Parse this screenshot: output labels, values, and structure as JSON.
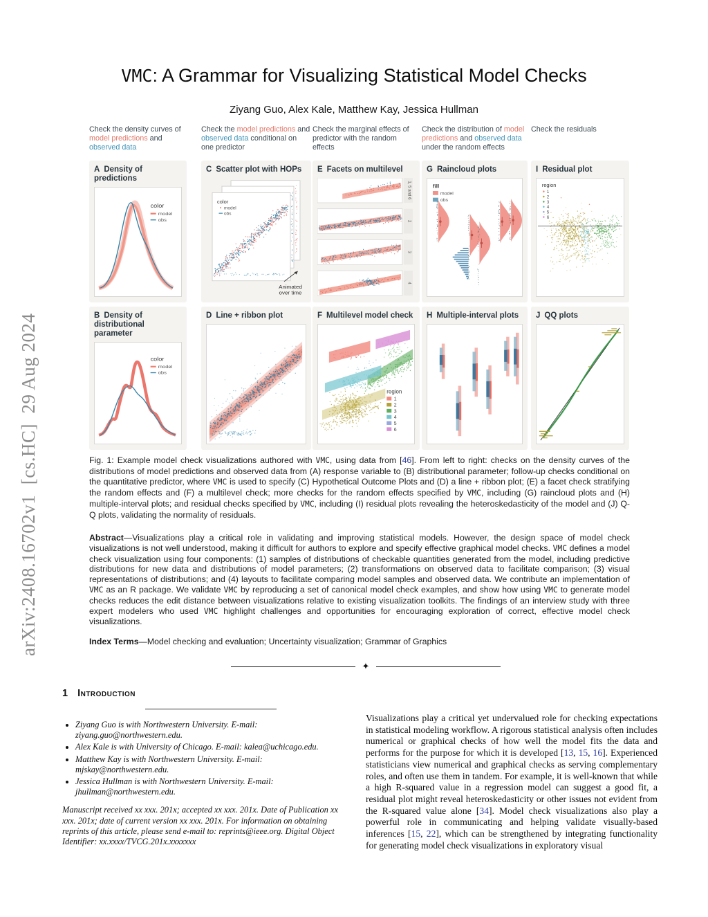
{
  "sidebar": {
    "arxiv": "arXiv:2408.16702v1  [cs.HC]  29 Aug 2024"
  },
  "header": {
    "title_code": "VMC",
    "title_rest": ": A Grammar for Visualizing Statistical Model Checks",
    "authors": "Ziyang Guo, Alex Kale, Matthew Kay, Jessica Hullman"
  },
  "figure": {
    "col_headers": [
      [
        {
          "t": "Check the density curves of "
        },
        {
          "t": "model predictions",
          "s": "model"
        },
        {
          "t": " and "
        },
        {
          "t": "observed data",
          "s": "obs"
        }
      ],
      [
        {
          "t": "Check the "
        },
        {
          "t": "model predictions",
          "s": "model"
        },
        {
          "t": " and "
        },
        {
          "t": "observed data",
          "s": "obs"
        },
        {
          "t": " conditional on one predictor"
        }
      ],
      [
        {
          "t": "Check the marginal effects of predictor with the random effects"
        }
      ],
      [
        {
          "t": "Check the distribution of "
        },
        {
          "t": "model predictions",
          "s": "model"
        },
        {
          "t": " and "
        },
        {
          "t": "observed data",
          "s": "obs"
        },
        {
          "t": " under the random effects"
        }
      ],
      [
        {
          "t": "Check the residuals"
        }
      ]
    ],
    "panels": {
      "A": {
        "letter": "A",
        "title": "Density of predictions"
      },
      "B": {
        "letter": "B",
        "title": "Density of distributional parameter"
      },
      "C": {
        "letter": "C",
        "title": "Scatter plot with HOPs"
      },
      "D": {
        "letter": "D",
        "title": "Line + ribbon plot"
      },
      "E": {
        "letter": "E",
        "title": "Facets on multilevel"
      },
      "F": {
        "letter": "F",
        "title": "Multilevel model check"
      },
      "G": {
        "letter": "G",
        "title": "Raincloud plots"
      },
      "H": {
        "letter": "H",
        "title": "Multiple-interval plots"
      },
      "I": {
        "letter": "I",
        "title": "Residual plot"
      },
      "J": {
        "letter": "J",
        "title": "QQ plots"
      }
    },
    "legend_color": {
      "title": "color",
      "model": "model",
      "obs": "obs"
    },
    "legend_fill": {
      "title": "fill",
      "model": "model",
      "obs": "obs"
    },
    "legend_region": {
      "title": "region",
      "items": [
        "1",
        "2",
        "3",
        "4",
        "5",
        "6"
      ]
    },
    "facet_labels": [
      "1, 5 and 6",
      "2",
      "3",
      "4"
    ],
    "hops_note": {
      "line1": "Animated",
      "line2": "over time"
    },
    "colors": {
      "model": "#ED8372",
      "obs": "#3E8FB0",
      "region": [
        "#F08A80",
        "#B3A139",
        "#5FAE5F",
        "#74C4CF",
        "#97A8DE",
        "#D98FD6"
      ]
    }
  },
  "caption": {
    "segments": [
      {
        "t": "Fig. 1:  Example model check visualizations authored with "
      },
      {
        "t": "VMC",
        "s": "code"
      },
      {
        "t": ", using data from ["
      },
      {
        "t": "46",
        "s": "cite"
      },
      {
        "t": "]. From left to right: checks on the density curves of the distributions of model predictions and observed data from (A) response variable to (B) distributional parameter; follow-up checks conditional on the quantitative predictor, where "
      },
      {
        "t": "VMC",
        "s": "code"
      },
      {
        "t": " is used to specify (C) Hypothetical Outcome Plots and (D) a line + ribbon plot; (E) a facet check stratifying the random effects and (F) a multilevel check; more checks for the random effects specified by "
      },
      {
        "t": "VMC",
        "s": "code"
      },
      {
        "t": ", including (G) raincloud plots and (H) multiple-interval plots; and residual checks specified by "
      },
      {
        "t": "VMC",
        "s": "code"
      },
      {
        "t": ", including (I) residual plots revealing the heteroskedasticity of the model and (J) Q-Q plots, validating the normality of residuals."
      }
    ]
  },
  "abstract": {
    "segments": [
      {
        "t": "Abstract",
        "s": "b"
      },
      {
        "t": "—Visualizations play a critical role in validating and improving statistical models. However, the design space of model check visualizations is not well understood, making it difficult for authors to explore and specify effective graphical model checks. "
      },
      {
        "t": "VMC",
        "s": "code"
      },
      {
        "t": " defines a model check visualization using four components: (1) samples of distributions of checkable quantities generated from the model, including predictive distributions for new data and distributions of model parameters; (2) transformations on observed data to facilitate comparison; (3) visual representations of distributions; and (4) layouts to facilitate comparing model samples and observed data. We contribute an implementation of "
      },
      {
        "t": "VMC",
        "s": "code"
      },
      {
        "t": " as an R package. We validate "
      },
      {
        "t": "VMC",
        "s": "code"
      },
      {
        "t": " by reproducing a set of canonical model check examples, and show how using "
      },
      {
        "t": "VMC",
        "s": "code"
      },
      {
        "t": " to generate model checks reduces the edit distance between visualizations relative to existing visualization toolkits. The findings of an interview study with three expert modelers who used "
      },
      {
        "t": "VMC",
        "s": "code"
      },
      {
        "t": " highlight challenges and opportunities for encouraging exploration of correct, effective model check visualizations."
      }
    ]
  },
  "index_terms": {
    "segments": [
      {
        "t": "Index Terms",
        "s": "b"
      },
      {
        "t": "—Model checking and evaluation; Uncertainty visualization; Grammar of Graphics"
      }
    ]
  },
  "intro": {
    "number": "1",
    "heading": "Introduction"
  },
  "footnotes": {
    "bullets": [
      "Ziyang Guo is with Northwestern University. E-mail: ziyang.guo@northwestern.edu.",
      "Alex Kale is with University of Chicago. E-mail: kalea@uchicago.edu.",
      "Matthew Kay is with Northwestern University. E-mail: mjskay@northwestern.edu.",
      "Jessica Hullman is with Northwestern University. E-mail: jhullman@northwestern.edu."
    ],
    "manuscript": "Manuscript received xx xxx. 201x; accepted xx xxx. 201x. Date of Publication xx xxx. 201x; date of current version xx xxx. 201x. For information on obtaining reprints of this article, please send e-mail to: reprints@ieee.org. Digital Object Identifier: xx.xxxx/TVCG.201x.xxxxxxx"
  },
  "body": {
    "intro_par": [
      {
        "t": "Visualizations play a critical yet undervalued role for checking expectations in statistical modeling workflow. A rigorous statistical analysis often includes numerical or graphical checks of how well the model fits the data and performs for the purpose for which it is developed ["
      },
      {
        "t": "13",
        "s": "cite"
      },
      {
        "t": ", "
      },
      {
        "t": "15",
        "s": "cite"
      },
      {
        "t": ", "
      },
      {
        "t": "16",
        "s": "cite"
      },
      {
        "t": "]. Experienced statisticians view numerical and graphical checks as serving complementary roles, and often use them in tandem. For example, it is well-known that while a high R-squared value in a regression model can suggest a good fit, a residual plot might reveal heteroskedasticity or other issues not evident from the R-squared value alone ["
      },
      {
        "t": "34",
        "s": "cite"
      },
      {
        "t": "]. Model check visualizations also play a powerful role in communicating and helping validate visually-based inferences ["
      },
      {
        "t": "15",
        "s": "cite"
      },
      {
        "t": ", "
      },
      {
        "t": "22",
        "s": "cite"
      },
      {
        "t": "], which can be strengthened by integrating functionality for generating model check visualizations in exploratory visual"
      }
    ]
  }
}
